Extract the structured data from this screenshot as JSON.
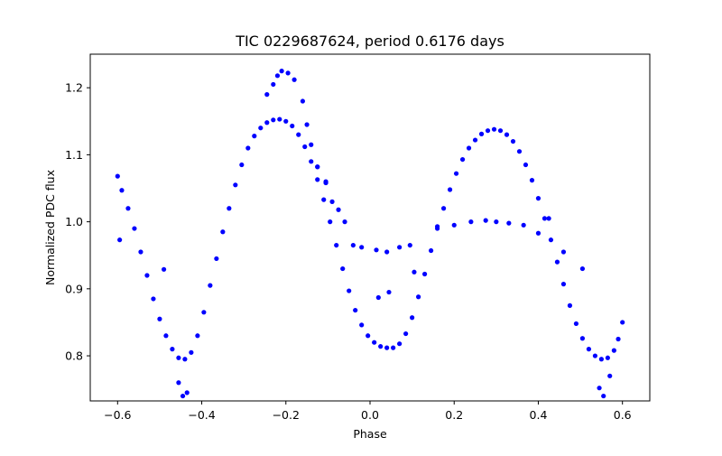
{
  "chart_data": {
    "type": "scatter",
    "title": "TIC 0229687624, period 0.6176 days",
    "xlabel": "Phase",
    "ylabel": "Normalized PDC flux",
    "xlim": [
      -0.665,
      0.665
    ],
    "ylim": [
      0.7327,
      1.2501
    ],
    "xticks": [
      -0.6,
      -0.4,
      -0.2,
      0.0,
      0.2,
      0.4,
      0.6
    ],
    "xtick_labels": [
      "−0.6",
      "−0.4",
      "−0.2",
      "0.0",
      "0.2",
      "0.4",
      "0.6"
    ],
    "yticks": [
      0.8,
      0.9,
      1.0,
      1.1,
      1.2
    ],
    "ytick_labels": [
      "0.8",
      "0.9",
      "1.0",
      "1.1",
      "1.2"
    ],
    "grid": false,
    "legend": "none",
    "marker_color": "#0000ff",
    "series": [
      {
        "points": [
          [
            -0.6,
            1.068
          ],
          [
            -0.59,
            1.047
          ],
          [
            -0.575,
            1.02
          ],
          [
            -0.56,
            0.99
          ],
          [
            -0.545,
            0.955
          ],
          [
            -0.53,
            0.92
          ],
          [
            -0.515,
            0.885
          ],
          [
            -0.5,
            0.855
          ],
          [
            -0.485,
            0.83
          ],
          [
            -0.47,
            0.81
          ],
          [
            -0.455,
            0.797
          ],
          [
            -0.44,
            0.795
          ],
          [
            -0.425,
            0.805
          ],
          [
            -0.41,
            0.83
          ],
          [
            -0.395,
            0.865
          ],
          [
            -0.38,
            0.905
          ],
          [
            -0.365,
            0.945
          ],
          [
            -0.35,
            0.985
          ],
          [
            -0.335,
            1.02
          ],
          [
            -0.32,
            1.055
          ],
          [
            -0.305,
            1.085
          ],
          [
            -0.29,
            1.11
          ],
          [
            -0.275,
            1.128
          ],
          [
            -0.26,
            1.14
          ],
          [
            -0.245,
            1.148
          ],
          [
            -0.23,
            1.152
          ],
          [
            -0.215,
            1.153
          ],
          [
            -0.2,
            1.15
          ],
          [
            -0.185,
            1.143
          ],
          [
            -0.17,
            1.13
          ],
          [
            -0.155,
            1.112
          ],
          [
            -0.14,
            1.09
          ],
          [
            -0.125,
            1.063
          ],
          [
            -0.11,
            1.033
          ],
          [
            -0.095,
            1.0
          ],
          [
            -0.08,
            0.965
          ],
          [
            -0.065,
            0.93
          ],
          [
            -0.05,
            0.897
          ],
          [
            -0.035,
            0.868
          ],
          [
            -0.02,
            0.846
          ],
          [
            -0.005,
            0.83
          ],
          [
            0.01,
            0.82
          ],
          [
            0.025,
            0.814
          ],
          [
            0.04,
            0.812
          ],
          [
            0.055,
            0.812
          ],
          [
            0.07,
            0.818
          ],
          [
            0.085,
            0.833
          ],
          [
            0.1,
            0.857
          ],
          [
            0.115,
            0.888
          ],
          [
            0.13,
            0.922
          ],
          [
            0.145,
            0.957
          ],
          [
            0.16,
            0.99
          ],
          [
            0.175,
            1.02
          ],
          [
            0.19,
            1.048
          ],
          [
            0.205,
            1.072
          ],
          [
            0.22,
            1.093
          ],
          [
            0.235,
            1.11
          ],
          [
            0.25,
            1.122
          ],
          [
            0.265,
            1.131
          ],
          [
            0.28,
            1.136
          ],
          [
            0.295,
            1.138
          ],
          [
            0.31,
            1.136
          ],
          [
            0.325,
            1.13
          ],
          [
            0.34,
            1.12
          ],
          [
            0.355,
            1.105
          ],
          [
            0.37,
            1.085
          ],
          [
            0.385,
            1.062
          ],
          [
            0.4,
            1.035
          ],
          [
            0.415,
            1.005
          ],
          [
            0.43,
            0.973
          ],
          [
            0.445,
            0.94
          ],
          [
            0.46,
            0.907
          ],
          [
            0.475,
            0.875
          ],
          [
            0.49,
            0.848
          ],
          [
            0.505,
            0.826
          ],
          [
            0.52,
            0.81
          ],
          [
            0.535,
            0.8
          ],
          [
            0.55,
            0.795
          ],
          [
            0.565,
            0.797
          ],
          [
            0.58,
            0.808
          ],
          [
            0.59,
            0.825
          ],
          [
            0.6,
            0.85
          ]
        ]
      },
      {
        "points": [
          [
            -0.595,
            0.973
          ],
          [
            -0.49,
            0.929
          ],
          [
            -0.455,
            0.76
          ],
          [
            -0.445,
            0.74
          ],
          [
            -0.435,
            0.745
          ],
          [
            -0.245,
            1.19
          ],
          [
            -0.23,
            1.205
          ],
          [
            -0.22,
            1.218
          ],
          [
            -0.21,
            1.225
          ],
          [
            -0.195,
            1.222
          ],
          [
            -0.18,
            1.212
          ],
          [
            -0.16,
            1.18
          ],
          [
            -0.15,
            1.145
          ],
          [
            -0.14,
            1.115
          ],
          [
            -0.125,
            1.082
          ],
          [
            -0.105,
            1.058
          ],
          [
            -0.09,
            1.03
          ],
          [
            -0.075,
            1.018
          ],
          [
            -0.06,
            1.0
          ],
          [
            -0.04,
            0.965
          ],
          [
            -0.02,
            0.962
          ],
          [
            0.015,
            0.958
          ],
          [
            0.04,
            0.955
          ],
          [
            0.07,
            0.962
          ],
          [
            0.095,
            0.965
          ],
          [
            0.02,
            0.887
          ],
          [
            0.045,
            0.895
          ],
          [
            0.105,
            0.925
          ],
          [
            0.16,
            0.993
          ],
          [
            0.2,
            0.995
          ],
          [
            0.24,
            1.0
          ],
          [
            0.275,
            1.002
          ],
          [
            0.3,
            1.0
          ],
          [
            0.33,
            0.998
          ],
          [
            0.365,
            0.995
          ],
          [
            0.4,
            0.983
          ],
          [
            0.46,
            0.955
          ],
          [
            0.505,
            0.93
          ],
          [
            0.425,
            1.005
          ],
          [
            0.555,
            0.74
          ],
          [
            0.545,
            0.752
          ],
          [
            0.57,
            0.77
          ],
          [
            -0.105,
            1.06
          ],
          [
            -0.125,
            1.082
          ]
        ]
      }
    ]
  }
}
